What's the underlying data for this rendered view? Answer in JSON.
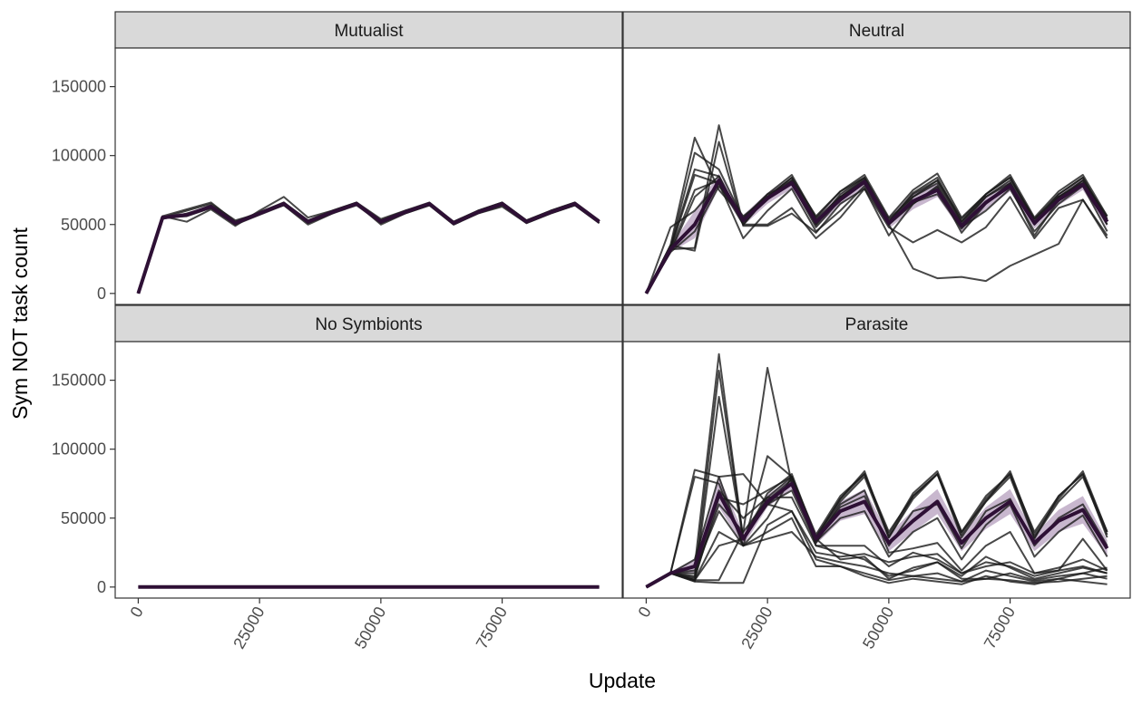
{
  "chart_data": {
    "type": "line",
    "xlabel": "Update",
    "ylabel": "Sym NOT task count",
    "x_ticks": [
      0,
      25000,
      50000,
      75000
    ],
    "x_tick_labels": [
      "0",
      "25000",
      "50000",
      "75000"
    ],
    "y_ticks": [
      0,
      50000,
      100000,
      150000
    ],
    "y_tick_labels": [
      "0",
      "50000",
      "100000",
      "150000"
    ],
    "xlim": [
      -4750,
      99750
    ],
    "ylim": [
      -8000,
      178000
    ],
    "grid": false,
    "legend": "none",
    "x": [
      0,
      5000,
      10000,
      15000,
      20000,
      25000,
      30000,
      35000,
      40000,
      45000,
      50000,
      55000,
      60000,
      65000,
      70000,
      75000,
      80000,
      85000,
      90000,
      95000
    ],
    "colors": {
      "replicate": "#1a1a1a",
      "mean": "#2e1035",
      "ribbon": "#b59fbd",
      "strip_fill": "#d9d9d9",
      "panel_border": "#333333"
    },
    "panels": [
      {
        "title": "Mutualist",
        "mean": [
          0,
          55000,
          57000,
          63000,
          51000,
          58000,
          65000,
          52000,
          59000,
          65000,
          52000,
          59000,
          65000,
          51000,
          59000,
          65000,
          52000,
          59000,
          65000,
          52000
        ],
        "ribbon_lower": [
          0,
          54000,
          55500,
          61500,
          50000,
          57000,
          63500,
          51000,
          58000,
          63500,
          51000,
          58000,
          63500,
          50000,
          58000,
          63500,
          51000,
          58000,
          63500,
          51000
        ],
        "ribbon_upper": [
          0,
          56000,
          58500,
          64500,
          52000,
          59000,
          66500,
          53000,
          60000,
          66500,
          53000,
          60000,
          66500,
          52000,
          60000,
          66500,
          53000,
          60000,
          66500,
          53000
        ],
        "replicates": [
          [
            0,
            55000,
            56000,
            62000,
            50000,
            57000,
            64000,
            51000,
            58000,
            64000,
            51000,
            58000,
            64000,
            50000,
            58000,
            64000,
            51000,
            58000,
            64000,
            51000
          ],
          [
            0,
            56000,
            61000,
            66000,
            52000,
            59000,
            66000,
            53000,
            60000,
            66000,
            53000,
            60000,
            66000,
            52000,
            60000,
            66000,
            53000,
            60000,
            66000,
            52000
          ],
          [
            0,
            54000,
            58000,
            63000,
            51000,
            58000,
            65000,
            52000,
            59000,
            65000,
            52000,
            59000,
            65000,
            51000,
            59000,
            65000,
            52000,
            59000,
            65000,
            52000
          ],
          [
            0,
            56000,
            52000,
            61000,
            49000,
            60000,
            70000,
            55000,
            60000,
            66000,
            54000,
            60000,
            65000,
            52000,
            60000,
            66000,
            53000,
            60000,
            66000,
            53000
          ],
          [
            0,
            55000,
            60000,
            65000,
            53000,
            58000,
            64000,
            50000,
            58000,
            65000,
            50000,
            58000,
            64000,
            50000,
            58000,
            63000,
            51000,
            58000,
            64000,
            51000
          ],
          [
            0,
            55000,
            57000,
            64000,
            51000,
            58000,
            66000,
            52000,
            59000,
            65000,
            52000,
            59000,
            65000,
            51000,
            59000,
            65000,
            52000,
            59000,
            65000,
            52000
          ]
        ]
      },
      {
        "title": "Neutral",
        "mean": [
          0,
          32000,
          50000,
          82000,
          53000,
          69000,
          80000,
          52000,
          68000,
          81000,
          51000,
          67000,
          75000,
          49000,
          66000,
          78000,
          51000,
          68000,
          79000,
          52000
        ],
        "ribbon_lower": [
          0,
          30000,
          40000,
          77000,
          49000,
          65000,
          76000,
          48000,
          64000,
          77000,
          47000,
          61000,
          70000,
          45000,
          61000,
          74000,
          47000,
          64000,
          75000,
          48000
        ],
        "ribbon_upper": [
          0,
          34000,
          60000,
          87000,
          57000,
          73000,
          84000,
          56000,
          72000,
          85000,
          55000,
          73000,
          80000,
          53000,
          71000,
          82000,
          55000,
          72000,
          83000,
          56000
        ],
        "replicates": [
          [
            0,
            35000,
            113000,
            75000,
            55000,
            72000,
            86000,
            55000,
            74000,
            86000,
            55000,
            75000,
            87000,
            55000,
            72000,
            86000,
            55000,
            74000,
            86000,
            56000
          ],
          [
            0,
            32000,
            33000,
            122000,
            50000,
            70000,
            80000,
            50000,
            70000,
            80000,
            50000,
            70000,
            80000,
            50000,
            70000,
            80000,
            50000,
            70000,
            80000,
            50000
          ],
          [
            0,
            33000,
            90000,
            85000,
            52000,
            68000,
            82000,
            52000,
            70000,
            83000,
            52000,
            73000,
            84000,
            52000,
            72000,
            84000,
            52000,
            72000,
            84000,
            52000
          ],
          [
            0,
            48000,
            60000,
            80000,
            40000,
            60000,
            76000,
            45000,
            60000,
            78000,
            50000,
            65000,
            78000,
            48000,
            60000,
            76000,
            45000,
            65000,
            78000,
            45000
          ],
          [
            0,
            30000,
            70000,
            85000,
            50000,
            50000,
            62000,
            40000,
            55000,
            76000,
            48000,
            37000,
            46000,
            37000,
            48000,
            70000,
            40000,
            62000,
            68000,
            40000
          ],
          [
            0,
            32000,
            86000,
            80000,
            50000,
            70000,
            82000,
            50000,
            72000,
            84000,
            50000,
            18000,
            11000,
            12000,
            9000,
            20000,
            28000,
            36000,
            68000,
            42000
          ],
          [
            0,
            35000,
            31000,
            110000,
            49000,
            49000,
            58000,
            44000,
            65000,
            76000,
            42000,
            65000,
            77000,
            44000,
            65000,
            78000,
            42000,
            68000,
            82000,
            56000
          ],
          [
            0,
            30000,
            45000,
            78000,
            56000,
            70000,
            84000,
            56000,
            74000,
            84000,
            54000,
            70000,
            82000,
            54000,
            72000,
            84000,
            54000,
            72000,
            84000,
            54000
          ],
          [
            0,
            33000,
            102000,
            90000,
            54000,
            72000,
            80000,
            48000,
            68000,
            80000,
            50000,
            66000,
            72000,
            47000,
            66000,
            80000,
            50000,
            70000,
            80000,
            50000
          ],
          [
            0,
            31000,
            75000,
            82000,
            53000,
            70000,
            84000,
            54000,
            70000,
            82000,
            52000,
            72000,
            82000,
            52000,
            70000,
            82000,
            54000,
            70000,
            82000,
            54000
          ]
        ]
      },
      {
        "title": "No Symbionts",
        "mean": [
          0,
          0,
          0,
          0,
          0,
          0,
          0,
          0,
          0,
          0,
          0,
          0,
          0,
          0,
          0,
          0,
          0,
          0,
          0,
          0
        ],
        "ribbon_lower": [
          0,
          0,
          0,
          0,
          0,
          0,
          0,
          0,
          0,
          0,
          0,
          0,
          0,
          0,
          0,
          0,
          0,
          0,
          0,
          0
        ],
        "ribbon_upper": [
          0,
          0,
          0,
          0,
          0,
          0,
          0,
          0,
          0,
          0,
          0,
          0,
          0,
          0,
          0,
          0,
          0,
          0,
          0,
          0
        ],
        "replicates": [
          [
            0,
            0,
            0,
            0,
            0,
            0,
            0,
            0,
            0,
            0,
            0,
            0,
            0,
            0,
            0,
            0,
            0,
            0,
            0,
            0
          ]
        ]
      },
      {
        "title": "Parasite",
        "mean": [
          0,
          10000,
          15000,
          68000,
          35000,
          62000,
          75000,
          35000,
          55000,
          62000,
          32000,
          48000,
          62000,
          32000,
          50000,
          62000,
          32000,
          48000,
          56000,
          28000
        ],
        "ribbon_lower": [
          0,
          9000,
          10000,
          58000,
          30000,
          58000,
          71000,
          31000,
          48000,
          53000,
          26000,
          40000,
          53000,
          26000,
          42000,
          53000,
          26000,
          40000,
          46000,
          22000
        ],
        "ribbon_upper": [
          0,
          11000,
          20000,
          80000,
          40000,
          67000,
          79000,
          39000,
          62000,
          71000,
          38000,
          56000,
          71000,
          38000,
          58000,
          71000,
          38000,
          56000,
          66000,
          34000
        ],
        "replicates": [
          [
            0,
            10000,
            15000,
            169000,
            35000,
            65000,
            80000,
            38000,
            66000,
            82000,
            40000,
            66000,
            82000,
            40000,
            66000,
            82000,
            40000,
            66000,
            82000,
            40000
          ],
          [
            0,
            10000,
            4000,
            138000,
            35000,
            68000,
            82000,
            36000,
            64000,
            82000,
            38000,
            68000,
            84000,
            40000,
            62000,
            84000,
            38000,
            64000,
            84000,
            40000
          ],
          [
            0,
            10000,
            7000,
            157000,
            35000,
            60000,
            76000,
            34000,
            62000,
            80000,
            36000,
            64000,
            82000,
            38000,
            64000,
            82000,
            36000,
            62000,
            80000,
            38000
          ],
          [
            0,
            10000,
            5000,
            5000,
            40000,
            159000,
            75000,
            33000,
            50000,
            55000,
            22000,
            40000,
            50000,
            20000,
            45000,
            60000,
            22000,
            40000,
            52000,
            22000
          ],
          [
            0,
            10000,
            20000,
            80000,
            30000,
            95000,
            80000,
            35000,
            20000,
            22000,
            6000,
            14000,
            18000,
            8000,
            22000,
            14000,
            6000,
            10000,
            14000,
            10000
          ],
          [
            0,
            10000,
            85000,
            80000,
            82000,
            60000,
            55000,
            20000,
            15000,
            8000,
            3000,
            6000,
            4000,
            2000,
            8000,
            4000,
            2000,
            6000,
            4000,
            2000
          ],
          [
            0,
            10000,
            80000,
            75000,
            30000,
            40000,
            50000,
            15000,
            15000,
            10000,
            5000,
            8000,
            10000,
            4000,
            12000,
            8000,
            4000,
            6000,
            10000,
            6000
          ],
          [
            0,
            10000,
            6000,
            65000,
            60000,
            70000,
            80000,
            30000,
            30000,
            30000,
            15000,
            25000,
            20000,
            10000,
            18000,
            15000,
            8000,
            12000,
            35000,
            12000
          ],
          [
            0,
            10000,
            10000,
            70000,
            50000,
            65000,
            65000,
            30000,
            25000,
            20000,
            8000,
            12000,
            18000,
            6000,
            6000,
            10000,
            5000,
            8000,
            10000,
            14000
          ],
          [
            0,
            10000,
            4000,
            3000,
            3000,
            45000,
            55000,
            25000,
            22000,
            24000,
            18000,
            22000,
            24000,
            10000,
            15000,
            18000,
            10000,
            12000,
            15000,
            10000
          ],
          [
            0,
            10000,
            5000,
            40000,
            30000,
            35000,
            40000,
            22000,
            18000,
            15000,
            10000,
            8000,
            6000,
            4000,
            6000,
            5000,
            3000,
            4000,
            6000,
            8000
          ],
          [
            0,
            10000,
            5000,
            30000,
            35000,
            60000,
            70000,
            32000,
            60000,
            70000,
            25000,
            28000,
            32000,
            12000,
            30000,
            40000,
            10000,
            14000,
            20000,
            12000
          ],
          [
            0,
            10000,
            8000,
            60000,
            40000,
            63000,
            78000,
            35000,
            58000,
            66000,
            30000,
            55000,
            60000,
            28000,
            55000,
            64000,
            30000,
            50000,
            60000,
            30000
          ],
          [
            0,
            10000,
            12000,
            55000,
            30000,
            50000,
            80000,
            36000,
            64000,
            84000,
            36000,
            66000,
            82000,
            36000,
            62000,
            80000,
            35000,
            66000,
            82000,
            36000
          ]
        ]
      }
    ]
  }
}
